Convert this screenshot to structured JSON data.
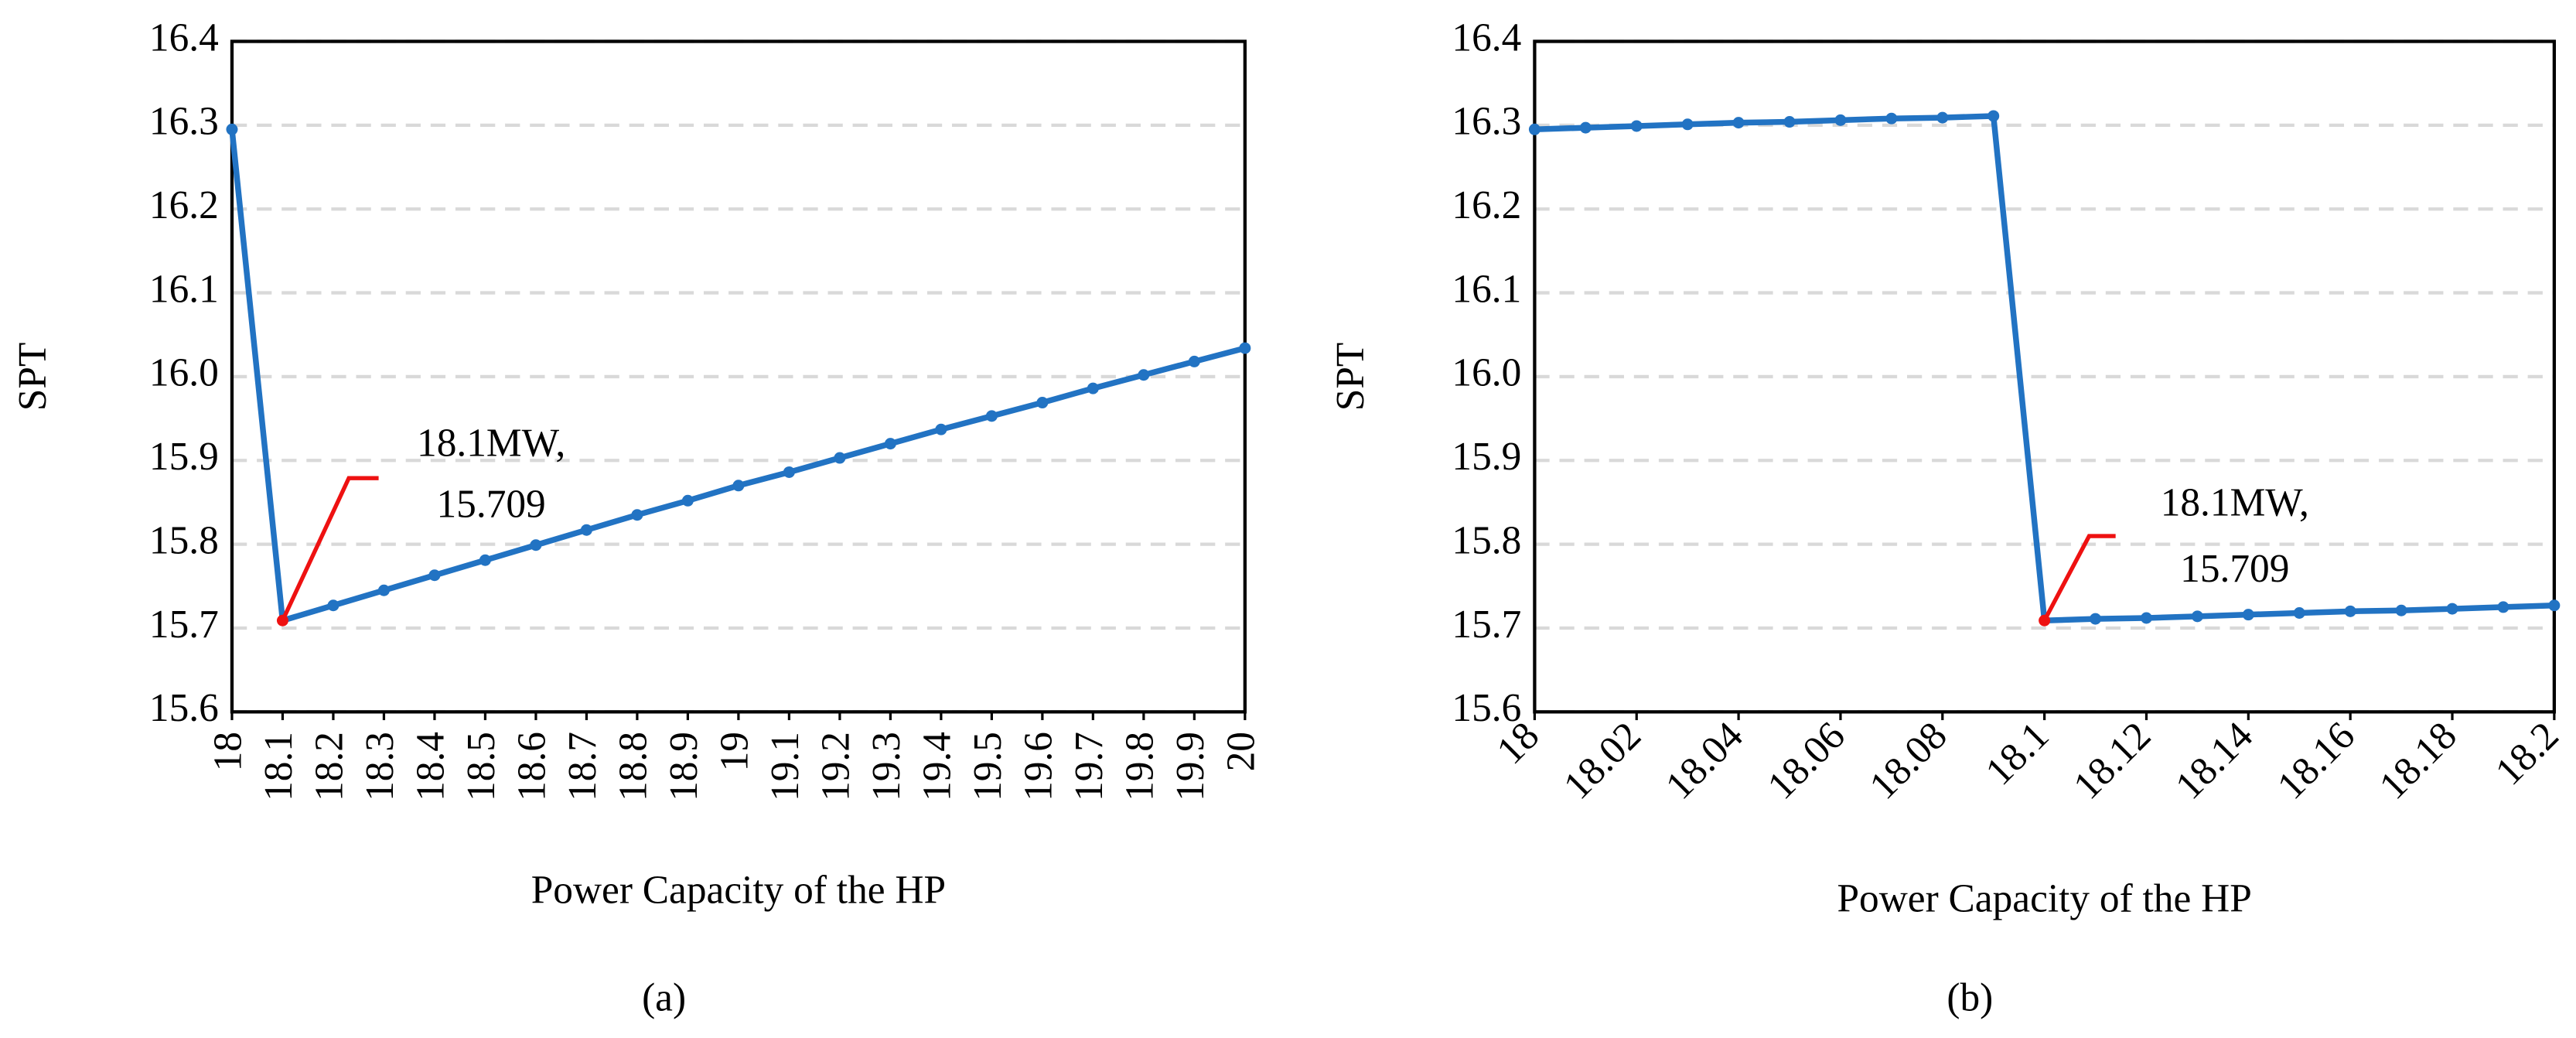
{
  "chart_data": [
    {
      "type": "line",
      "xlabel": "Power Capacity of the HP",
      "ylabel": "SPT",
      "caption": "(a)",
      "x": [
        18,
        18.1,
        18.2,
        18.3,
        18.4,
        18.5,
        18.6,
        18.7,
        18.8,
        18.9,
        19,
        19.1,
        19.2,
        19.3,
        19.4,
        19.5,
        19.6,
        19.7,
        19.8,
        19.9,
        20
      ],
      "series": [
        {
          "color": "#2273c3",
          "values": [
            16.295,
            15.709,
            15.727,
            15.745,
            15.763,
            15.781,
            15.799,
            15.817,
            15.835,
            15.852,
            15.87,
            15.886,
            15.903,
            15.92,
            15.937,
            15.953,
            15.969,
            15.986,
            16.002,
            16.018,
            16.034
          ]
        }
      ],
      "xlim": [
        18,
        20
      ],
      "xticks": [
        18,
        18.1,
        18.2,
        18.3,
        18.4,
        18.5,
        18.6,
        18.7,
        18.8,
        18.9,
        19,
        19.1,
        19.2,
        19.3,
        19.4,
        19.5,
        19.6,
        19.7,
        19.8,
        19.9,
        20
      ],
      "xtick_rotation": 90,
      "ylim": [
        15.6,
        16.4
      ],
      "yticks": [
        15.6,
        15.7,
        15.8,
        15.9,
        {
          "value": 16,
          "label": "16.0"
        },
        16.1,
        16.2,
        16.3,
        16.4
      ],
      "grid": true,
      "annotation": {
        "text": [
          "18.1MW,",
          "15.709"
        ],
        "x": 18.1,
        "y": 15.709,
        "color": "#ee1111"
      }
    },
    {
      "type": "line",
      "xlabel": "Power Capacity of the HP",
      "ylabel": "SPT",
      "caption": "(b)",
      "x": [
        18,
        18.01,
        18.02,
        18.03,
        18.04,
        18.05,
        18.06,
        18.07,
        18.08,
        18.09,
        18.1,
        18.11,
        18.12,
        18.13,
        18.14,
        18.15,
        18.16,
        18.17,
        18.18,
        18.19,
        18.2
      ],
      "series": [
        {
          "color": "#2273c3",
          "values": [
            16.295,
            16.297,
            16.299,
            16.301,
            16.303,
            16.304,
            16.306,
            16.308,
            16.309,
            16.311,
            15.709,
            15.711,
            15.712,
            15.714,
            15.716,
            15.718,
            15.72,
            15.721,
            15.723,
            15.725,
            15.727
          ]
        }
      ],
      "xlim": [
        18,
        18.2
      ],
      "xticks": [
        18,
        18.02,
        18.04,
        18.06,
        18.08,
        18.1,
        18.12,
        18.14,
        18.16,
        18.18,
        18.2
      ],
      "xtick_rotation": 45,
      "ylim": [
        15.6,
        16.4
      ],
      "yticks": [
        15.6,
        15.7,
        15.8,
        15.9,
        {
          "value": 16,
          "label": "16.0"
        },
        16.1,
        16.2,
        16.3,
        16.4
      ],
      "grid": true,
      "annotation": {
        "text": [
          "18.1MW,",
          "15.709"
        ],
        "x": 18.1,
        "y": 15.709,
        "color": "#ee1111"
      }
    }
  ]
}
